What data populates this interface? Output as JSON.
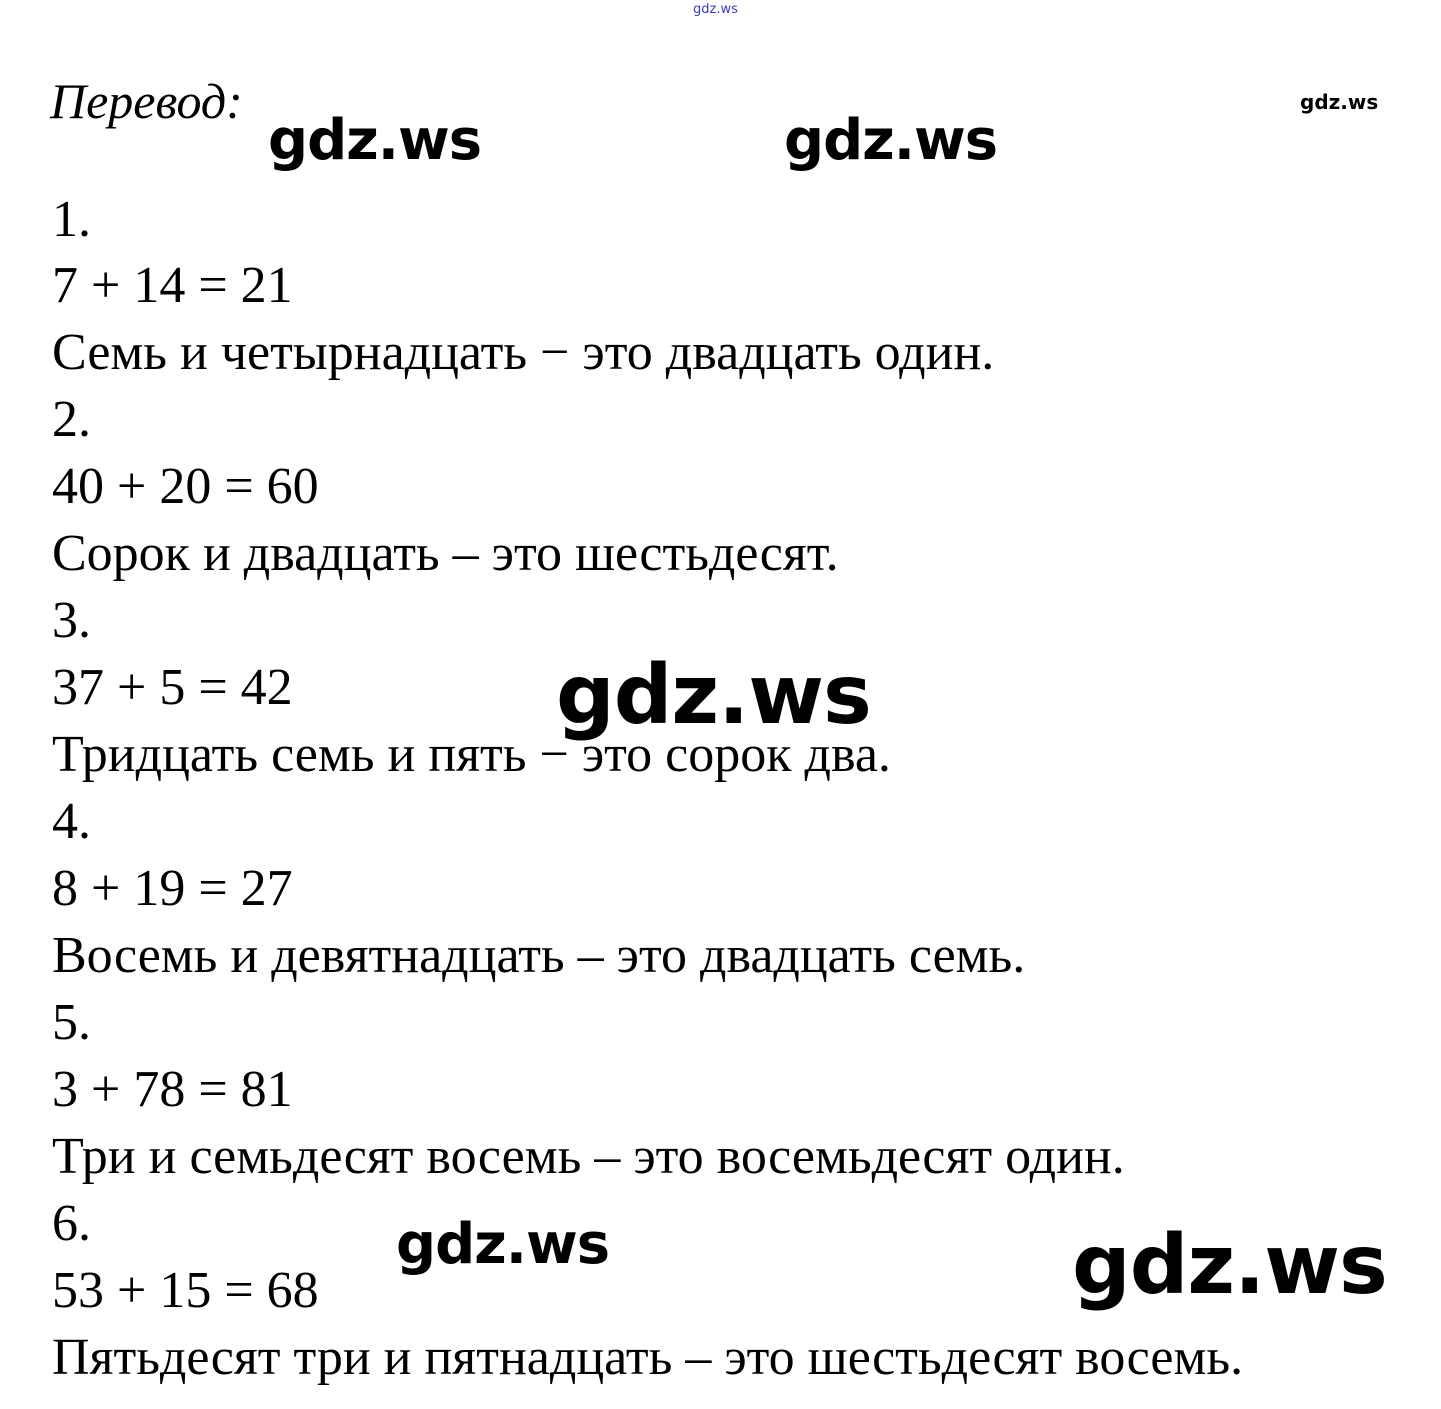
{
  "watermark": "gdz.ws",
  "title": "Перевод:",
  "items": [
    {
      "number": "1.",
      "equation": "7 + 14 = 21",
      "text": "Семь и четырнадцать − это двадцать один."
    },
    {
      "number": "2.",
      "equation": "40 + 20 = 60",
      "text": "Сорок и двадцать – это шестьдесят."
    },
    {
      "number": "3.",
      "equation": "37 + 5 = 42",
      "text": "Тридцать семь и пять − это сорок два."
    },
    {
      "number": "4.",
      "equation": "8 + 19 = 27",
      "text": "Восемь и девятнадцать – это двадцать семь."
    },
    {
      "number": "5.",
      "equation": "3 + 78 = 81",
      "text": "Три и семьдесят восемь – это восемьдесят один."
    },
    {
      "number": "6.",
      "equation": "53 + 15 = 68",
      "text": "Пятьдесят три и пятнадцать – это шестьдесят восемь."
    }
  ]
}
